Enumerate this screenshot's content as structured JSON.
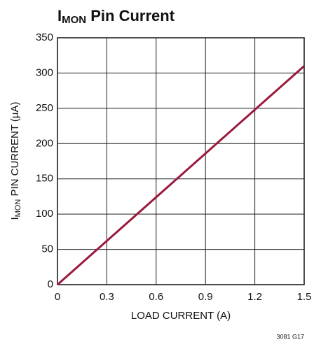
{
  "chart_data": {
    "type": "line",
    "title": [
      "I",
      "MON",
      " Pin Current"
    ],
    "ylabel": [
      "I",
      "MON",
      " PIN CURRENT (µA)"
    ],
    "xlabel": "LOAD CURRENT (A)",
    "note": "3081 G17",
    "x": [
      0,
      1.5
    ],
    "values": [
      0,
      310
    ],
    "color": "#9a1a3c",
    "xlim": [
      0,
      1.5
    ],
    "xticks": [
      0,
      0.3,
      0.6,
      0.9,
      1.2,
      1.5
    ],
    "ylim": [
      0,
      350
    ],
    "yticks": [
      0,
      50,
      100,
      150,
      200,
      250,
      300,
      350
    ],
    "grid": true
  }
}
